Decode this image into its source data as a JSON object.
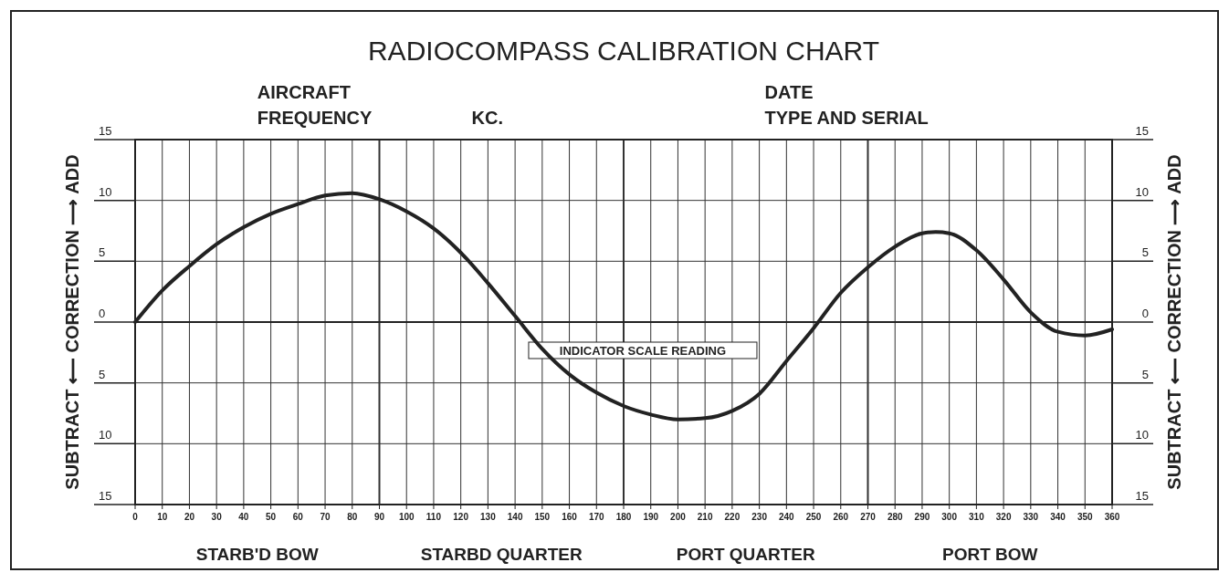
{
  "chart_data": {
    "type": "line",
    "title": "RADIOCOMPASS CALIBRATION CHART",
    "xlabel": "INDICATOR SCALE READING",
    "ylabel": "SUBTRACT ⟵ CORRECTION ⟶ ADD",
    "y2label": "SUBTRACT ⟵ CORRECTION ⟶ ADD",
    "annotations": [
      "AIRCRAFT",
      "FREQUENCY",
      "KC.",
      "DATE",
      "TYPE AND SERIAL",
      "STARB'D BOW",
      "STARBD QUARTER",
      "PORT QUARTER",
      "PORT BOW"
    ],
    "x": [
      0,
      10,
      20,
      30,
      40,
      50,
      60,
      70,
      80,
      90,
      100,
      110,
      120,
      130,
      140,
      150,
      160,
      170,
      180,
      190,
      200,
      210,
      220,
      230,
      240,
      250,
      260,
      270,
      280,
      290,
      295,
      300,
      310,
      320,
      330,
      340,
      350,
      360
    ],
    "series": [
      {
        "color": "#222222",
        "values": [
          0,
          2.6,
          4.6,
          6.4,
          7.8,
          8.9,
          9.7,
          10.4,
          10.6,
          10.1,
          9.1,
          7.7,
          5.7,
          3.2,
          0.5,
          -2.2,
          -4.3,
          -5.8,
          -6.9,
          -7.6,
          -8,
          -7.9,
          -7.3,
          -5.9,
          -3.2,
          -0.5,
          2.4,
          4.5,
          6.2,
          7.3,
          7.4,
          7.3,
          5.9,
          3.5,
          0.8,
          -0.8,
          -1.1,
          -0.6
        ]
      }
    ],
    "xlim": [
      0,
      360
    ],
    "xticks": [
      0,
      10,
      20,
      30,
      40,
      50,
      60,
      70,
      80,
      90,
      100,
      110,
      120,
      130,
      140,
      150,
      160,
      170,
      180,
      190,
      200,
      210,
      220,
      230,
      240,
      250,
      260,
      270,
      280,
      290,
      300,
      310,
      320,
      330,
      340,
      350,
      360
    ],
    "ylim": [
      -15,
      15
    ],
    "yticks": [
      {
        "value": -15,
        "label": "15"
      },
      {
        "value": -10,
        "label": "10"
      },
      {
        "value": -5,
        "label": "5"
      },
      0,
      5,
      10,
      15
    ],
    "y2lim": [
      -15,
      15
    ],
    "y2ticks": [
      {
        "value": -15,
        "label": "15"
      },
      {
        "value": -10,
        "label": "10"
      },
      {
        "value": -5,
        "label": "5"
      },
      0,
      5,
      10,
      15
    ],
    "grid": true,
    "marker": "none",
    "line_style": "solid"
  }
}
